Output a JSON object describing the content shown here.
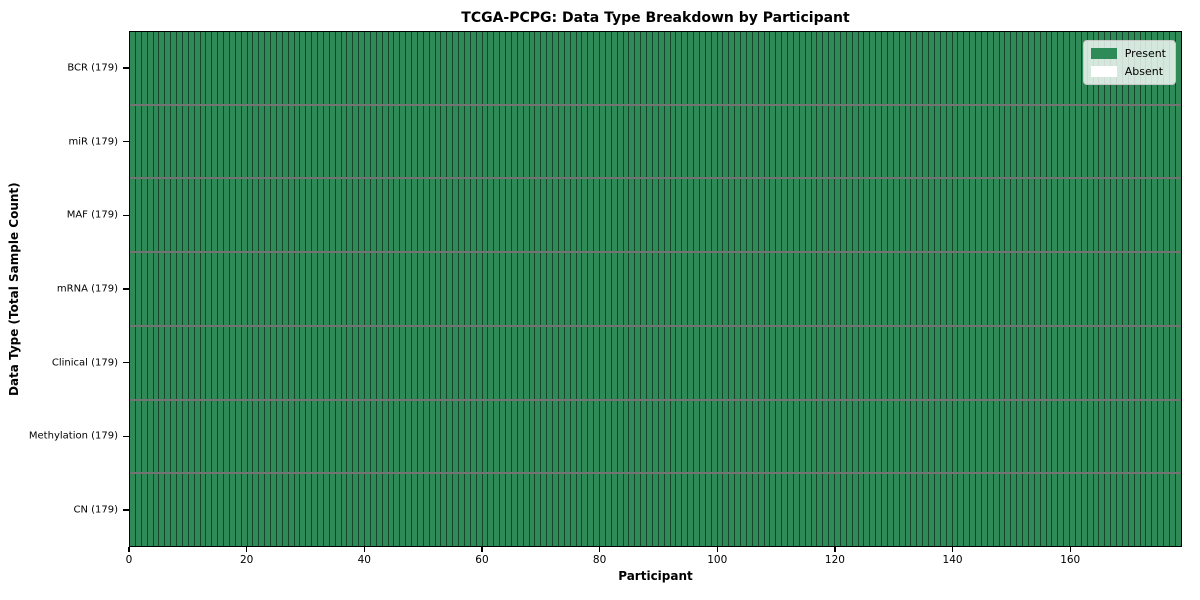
{
  "chart_data": {
    "type": "heatmap",
    "title": "TCGA-PCPG: Data Type Breakdown by Participant",
    "xlabel": "Participant",
    "ylabel": "Data Type (Total Sample Count)",
    "participants": 179,
    "xlim": [
      0,
      179
    ],
    "x_ticks": [
      0,
      20,
      40,
      60,
      80,
      100,
      120,
      140,
      160
    ],
    "rows": [
      {
        "label": "BCR (179)",
        "data_type": "BCR",
        "total_samples": 179,
        "present_count": 179,
        "absent_count": 0
      },
      {
        "label": "miR (179)",
        "data_type": "miR",
        "total_samples": 179,
        "present_count": 179,
        "absent_count": 0
      },
      {
        "label": "MAF (179)",
        "data_type": "MAF",
        "total_samples": 179,
        "present_count": 179,
        "absent_count": 0
      },
      {
        "label": "mRNA (179)",
        "data_type": "mRNA",
        "total_samples": 179,
        "present_count": 179,
        "absent_count": 0
      },
      {
        "label": "Clinical (179)",
        "data_type": "Clinical",
        "total_samples": 179,
        "present_count": 179,
        "absent_count": 0
      },
      {
        "label": "Methylation (179)",
        "data_type": "Methylation",
        "total_samples": 179,
        "present_count": 179,
        "absent_count": 0
      },
      {
        "label": "CN (179)",
        "data_type": "CN",
        "total_samples": 179,
        "present_count": 179,
        "absent_count": 0
      }
    ],
    "legend": {
      "position": "upper right",
      "entries": [
        {
          "label": "Present",
          "color": "#2e8b57"
        },
        {
          "label": "Absent",
          "color": "#ffffff"
        }
      ]
    },
    "colors": {
      "present": "#2e8b57",
      "absent": "#ffffff",
      "cell_edge": "rgba(0,0,0,0.5)",
      "spine": "#000000"
    },
    "grid": false
  }
}
